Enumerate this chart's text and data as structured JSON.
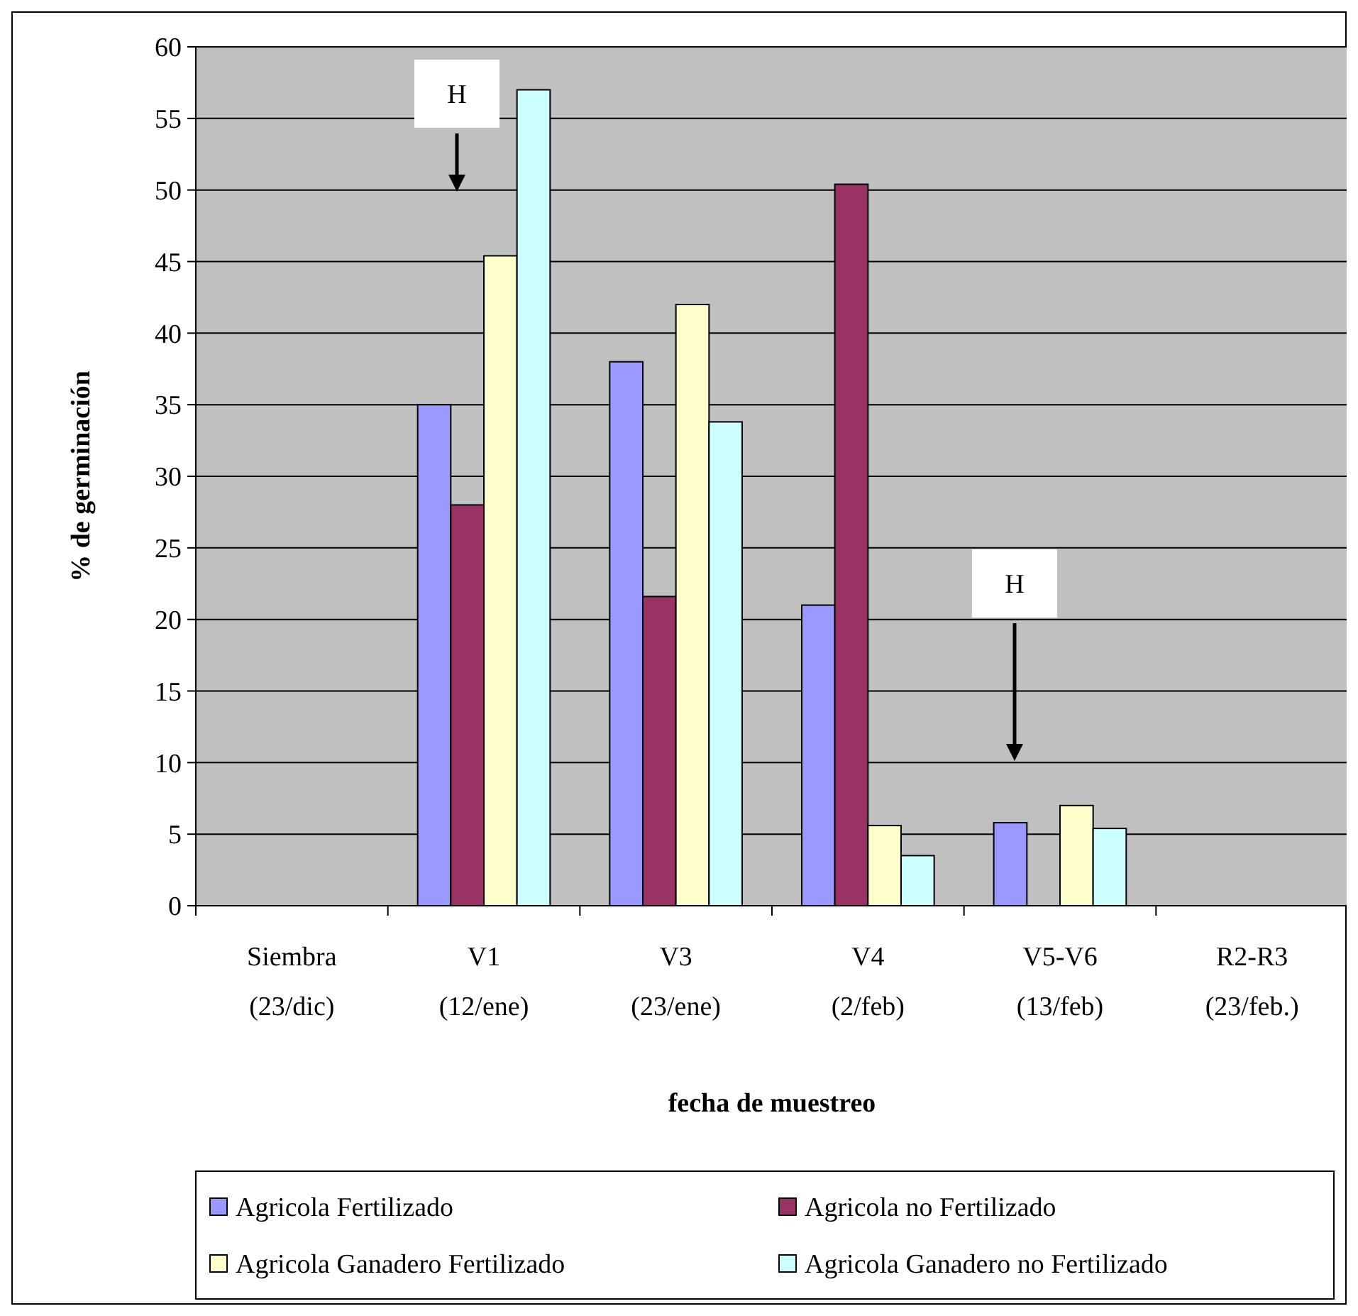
{
  "chart_data": {
    "type": "bar",
    "xlabel": "fecha de muestreo",
    "ylabel": "% de germinación",
    "categories": [
      "Siembra\n(23/dic)",
      "V1\n(12/ene)",
      "V3\n(23/ene)",
      "V4\n(2/feb)",
      "V5-V6\n(13/feb)",
      "R2-R3\n(23/feb.)"
    ],
    "series": [
      {
        "name": "Agricola Fertilizado",
        "color": "#9999ff",
        "values": [
          null,
          35,
          38,
          21,
          5.8,
          null
        ]
      },
      {
        "name": "Agricola no Fertilizado",
        "color": "#993366",
        "values": [
          null,
          28,
          21.6,
          50.4,
          null,
          null
        ]
      },
      {
        "name": "Agricola Ganadero Fertilizado",
        "color": "#ffffcc",
        "values": [
          null,
          45.4,
          42,
          5.6,
          7,
          null
        ]
      },
      {
        "name": "Agricola Ganadero no Fertilizado",
        "color": "#ccffff",
        "values": [
          null,
          57,
          33.8,
          3.5,
          5.4,
          null
        ]
      }
    ],
    "ylim": [
      0,
      60
    ],
    "yticks": [
      0,
      5,
      10,
      15,
      20,
      25,
      30,
      35,
      40,
      45,
      50,
      55,
      60
    ],
    "grid": "y",
    "legend": "bottom",
    "annotations": [
      "H",
      "H"
    ]
  }
}
